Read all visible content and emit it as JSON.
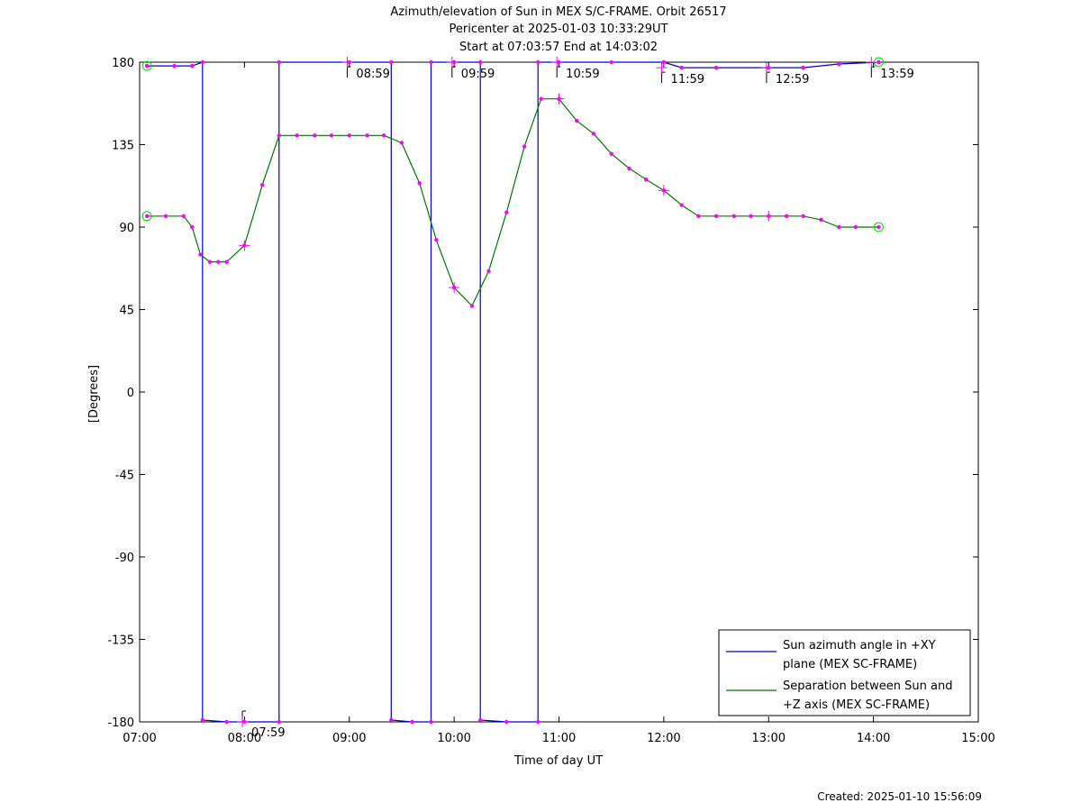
{
  "title_lines": [
    "Azimuth/elevation of Sun in MEX S/C-FRAME.  Orbit 26517",
    "Pericenter at 2025-01-03 10:33:29UT",
    "Start at 07:03:57 End at 14:03:02"
  ],
  "footer": "Created: 2025-01-10 15:56:09",
  "colors": {
    "azimuth": "#0000cc",
    "separation": "#007a00",
    "markers": "#ff00ff",
    "circles": "#00dd00"
  },
  "chart_data": {
    "type": "line",
    "xlabel": "Time of day UT",
    "ylabel": "[Degrees]",
    "x_unit": "hours of day",
    "xlim": [
      7,
      15
    ],
    "ylim": [
      -180,
      180
    ],
    "x_ticks": [
      "07:00",
      "08:00",
      "09:00",
      "10:00",
      "11:00",
      "12:00",
      "13:00",
      "14:00",
      "15:00"
    ],
    "y_ticks": [
      "180",
      "135",
      "90",
      "45",
      "0",
      "-45",
      "-90",
      "-135",
      "-180"
    ],
    "grid": false,
    "legend_position": "bottom-right",
    "series": [
      {
        "name": "Sun azimuth angle in +XY plane (MEX SC-FRAME)",
        "color_key": "azimuth",
        "points": [
          [
            7.07,
            178
          ],
          [
            7.33,
            178
          ],
          [
            7.5,
            178
          ],
          [
            7.6,
            180
          ],
          [
            7.6,
            -179
          ],
          [
            7.83,
            -180
          ],
          [
            8.0,
            -180
          ],
          [
            8.33,
            -180
          ],
          [
            8.33,
            180
          ],
          [
            9.0,
            180
          ],
          [
            9.4,
            180
          ],
          [
            9.4,
            -179
          ],
          [
            9.6,
            -180
          ],
          [
            9.78,
            -180
          ],
          [
            9.78,
            180
          ],
          [
            10.0,
            180
          ],
          [
            10.25,
            180
          ],
          [
            10.25,
            -179
          ],
          [
            10.5,
            -180
          ],
          [
            10.8,
            -180
          ],
          [
            10.8,
            180
          ],
          [
            11.0,
            180
          ],
          [
            11.5,
            180
          ],
          [
            12.0,
            180
          ],
          [
            12.17,
            177
          ],
          [
            12.5,
            177
          ],
          [
            13.0,
            177
          ],
          [
            13.33,
            177
          ],
          [
            13.67,
            179
          ],
          [
            14.05,
            180
          ]
        ],
        "hour_labels": [
          {
            "x": 7.98,
            "y": -180,
            "text": "07:59"
          },
          {
            "x": 8.98,
            "y": 180,
            "text": "08:59"
          },
          {
            "x": 9.98,
            "y": 180,
            "text": "09:59"
          },
          {
            "x": 10.98,
            "y": 180,
            "text": "10:59"
          },
          {
            "x": 11.98,
            "y": 177,
            "text": "11:59"
          },
          {
            "x": 12.98,
            "y": 177,
            "text": "12:59"
          },
          {
            "x": 13.98,
            "y": 180,
            "text": "13:59"
          }
        ]
      },
      {
        "name": "Separation between Sun and +Z axis (MEX SC-FRAME)",
        "color_key": "separation",
        "points": [
          [
            7.07,
            96
          ],
          [
            7.25,
            96
          ],
          [
            7.42,
            96
          ],
          [
            7.5,
            90
          ],
          [
            7.58,
            75
          ],
          [
            7.67,
            71
          ],
          [
            7.75,
            71
          ],
          [
            7.83,
            71
          ],
          [
            8.0,
            80
          ],
          [
            8.17,
            113
          ],
          [
            8.33,
            140
          ],
          [
            8.5,
            140
          ],
          [
            8.67,
            140
          ],
          [
            8.83,
            140
          ],
          [
            9.0,
            140
          ],
          [
            9.17,
            140
          ],
          [
            9.33,
            140
          ],
          [
            9.5,
            136
          ],
          [
            9.67,
            114
          ],
          [
            9.83,
            83
          ],
          [
            10.0,
            57
          ],
          [
            10.17,
            47
          ],
          [
            10.33,
            66
          ],
          [
            10.5,
            98
          ],
          [
            10.67,
            134
          ],
          [
            10.83,
            160
          ],
          [
            11.0,
            160
          ],
          [
            11.17,
            148
          ],
          [
            11.33,
            141
          ],
          [
            11.5,
            130
          ],
          [
            11.67,
            122
          ],
          [
            11.83,
            116
          ],
          [
            12.0,
            110
          ],
          [
            12.17,
            102
          ],
          [
            12.33,
            96
          ],
          [
            12.5,
            96
          ],
          [
            12.67,
            96
          ],
          [
            12.83,
            96
          ],
          [
            13.0,
            96
          ],
          [
            13.17,
            96
          ],
          [
            13.33,
            96
          ],
          [
            13.5,
            94
          ],
          [
            13.67,
            90
          ],
          [
            13.83,
            90
          ],
          [
            14.05,
            90
          ]
        ]
      }
    ]
  }
}
